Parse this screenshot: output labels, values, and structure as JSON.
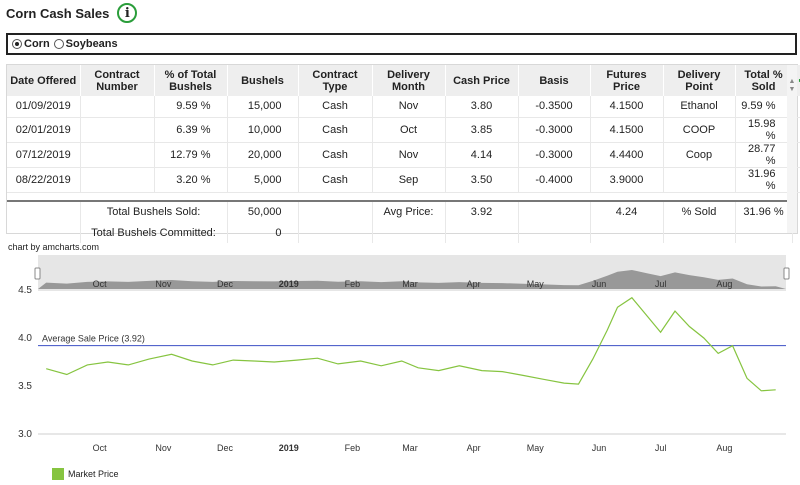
{
  "page": {
    "title": "Corn Cash Sales",
    "info_icon": "info-icon"
  },
  "crop_selector": {
    "options": [
      {
        "label": "Corn",
        "selected": true
      },
      {
        "label": "Soybeans",
        "selected": false
      }
    ]
  },
  "table": {
    "headers": [
      "Date Offered",
      "Contract Number",
      "% of Total Bushels",
      "Bushels",
      "Contract Type",
      "Delivery Month",
      "Cash Price",
      "Basis",
      "Futures Price",
      "Delivery Point",
      "Total % Sold"
    ],
    "add_icon": "plus-icon",
    "delete_icon": "trash-icon",
    "rows": [
      {
        "date": "01/09/2019",
        "contract": "",
        "pct_total": "9.59 %",
        "bushels": "15,000",
        "type": "Cash",
        "month": "Nov",
        "cash": "3.80",
        "basis": "-0.3500",
        "futures": "4.1500",
        "point": "Ethanol",
        "total_sold": "9.59 %"
      },
      {
        "date": "02/01/2019",
        "contract": "",
        "pct_total": "6.39 %",
        "bushels": "10,000",
        "type": "Cash",
        "month": "Oct",
        "cash": "3.85",
        "basis": "-0.3000",
        "futures": "4.1500",
        "point": "COOP",
        "total_sold": "15.98 %"
      },
      {
        "date": "07/12/2019",
        "contract": "",
        "pct_total": "12.79 %",
        "bushels": "20,000",
        "type": "Cash",
        "month": "Nov",
        "cash": "4.14",
        "basis": "-0.3000",
        "futures": "4.4400",
        "point": "Coop",
        "total_sold": "28.77 %"
      },
      {
        "date": "08/22/2019",
        "contract": "",
        "pct_total": "3.20 %",
        "bushels": "5,000",
        "type": "Cash",
        "month": "Sep",
        "cash": "3.50",
        "basis": "-0.4000",
        "futures": "3.9000",
        "point": "",
        "total_sold": "31.96 %"
      }
    ],
    "totals": {
      "sold_label": "Total Bushels Sold:",
      "sold_value": "50,000",
      "avg_label": "Avg Price:",
      "avg_value": "3.92",
      "futures_avg": "4.24",
      "pct_label": "% Sold",
      "pct_value": "31.96 %",
      "committed_label": "Total Bushels Committed:",
      "committed_value": "0"
    }
  },
  "chart": {
    "credit": "chart by amcharts.com",
    "colors": {
      "line": "#86c440",
      "avg": "#3b4fc4",
      "scrollbar": "#8a8a8a"
    },
    "legend_label": "Market Price"
  },
  "chart_data": {
    "type": "line",
    "x_tick_labels": [
      "Oct",
      "Nov",
      "Dec",
      "2019",
      "Feb",
      "Mar",
      "Apr",
      "May",
      "Jun",
      "Jul",
      "Aug"
    ],
    "y_tick_labels": [
      "3.0",
      "3.5",
      "4.0",
      "4.5"
    ],
    "ylim": [
      3.0,
      4.5
    ],
    "average_line": {
      "label": "Average Sale Price (3.92)",
      "value": 3.92
    },
    "series": [
      {
        "name": "Market Price",
        "x": [
          "2018-09-05",
          "2018-09-15",
          "2018-09-25",
          "2018-10-05",
          "2018-10-15",
          "2018-10-25",
          "2018-11-05",
          "2018-11-15",
          "2018-11-25",
          "2018-12-05",
          "2018-12-15",
          "2018-12-25",
          "2019-01-05",
          "2019-01-15",
          "2019-01-25",
          "2019-02-05",
          "2019-02-15",
          "2019-02-25",
          "2019-03-05",
          "2019-03-15",
          "2019-03-25",
          "2019-04-05",
          "2019-04-15",
          "2019-04-25",
          "2019-05-05",
          "2019-05-15",
          "2019-05-22",
          "2019-05-29",
          "2019-06-05",
          "2019-06-10",
          "2019-06-17",
          "2019-06-24",
          "2019-07-01",
          "2019-07-08",
          "2019-07-15",
          "2019-07-22",
          "2019-07-29",
          "2019-08-05",
          "2019-08-12",
          "2019-08-19",
          "2019-08-26"
        ],
        "values": [
          3.68,
          3.62,
          3.72,
          3.75,
          3.72,
          3.78,
          3.83,
          3.76,
          3.72,
          3.77,
          3.76,
          3.75,
          3.77,
          3.79,
          3.73,
          3.76,
          3.71,
          3.76,
          3.69,
          3.66,
          3.71,
          3.66,
          3.65,
          3.61,
          3.57,
          3.53,
          3.52,
          3.78,
          4.08,
          4.32,
          4.42,
          4.24,
          4.06,
          4.28,
          4.12,
          4.0,
          3.84,
          3.92,
          3.58,
          3.45,
          3.46
        ]
      }
    ]
  }
}
